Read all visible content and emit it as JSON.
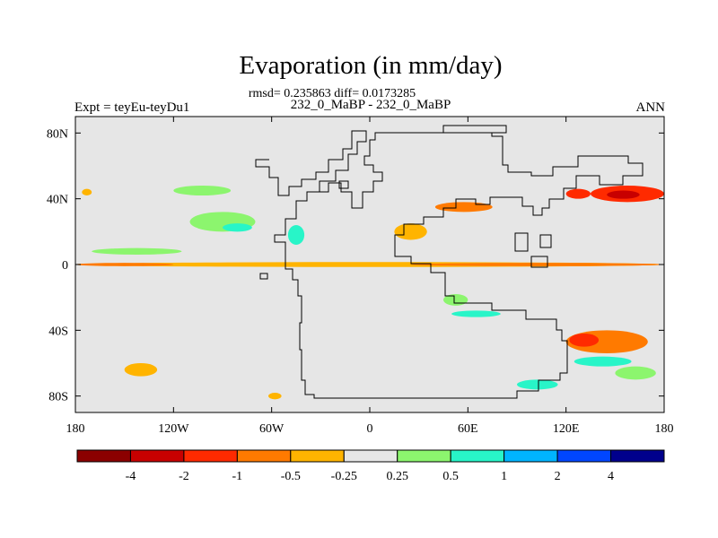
{
  "chart_data": {
    "type": "heatmap",
    "title": "Evaporation (in mm/day)",
    "stats": "rmsd= 0.235863 diff= 0.0173285",
    "subtitle": "232_0_MaBP - 232_0_MaBP",
    "left_label": "Expt = teyEu-teyDu1",
    "right_label": "ANN",
    "x_ticks": [
      {
        "value": -180,
        "label": "180"
      },
      {
        "value": -120,
        "label": "120W"
      },
      {
        "value": -60,
        "label": "60W"
      },
      {
        "value": 0,
        "label": "0"
      },
      {
        "value": 60,
        "label": "60E"
      },
      {
        "value": 120,
        "label": "120E"
      },
      {
        "value": 180,
        "label": "180"
      }
    ],
    "y_ticks": [
      {
        "value": 80,
        "label": "80N"
      },
      {
        "value": 40,
        "label": "40N"
      },
      {
        "value": 0,
        "label": "0"
      },
      {
        "value": -40,
        "label": "40S"
      },
      {
        "value": -80,
        "label": "80S"
      }
    ],
    "xlim": [
      -180,
      180
    ],
    "ylim": [
      -90,
      90
    ],
    "colorbar": {
      "colors": [
        "#8b0000",
        "#c80000",
        "#ff2a00",
        "#ff7a00",
        "#ffb400",
        "#e6e6e6",
        "#8cf56e",
        "#28f5c8",
        "#00b4ff",
        "#0046ff",
        "#00008c"
      ],
      "levels": [
        -4,
        -2,
        -1,
        -0.5,
        -0.25,
        0.25,
        0.5,
        1,
        2,
        4
      ],
      "level_labels": [
        "-4",
        "-2",
        "-1",
        "-0.5",
        "-0.25",
        "0.25",
        "0.5",
        "1",
        "2",
        "4"
      ]
    },
    "background_color": "#e6e6e6",
    "anomaly_regions": [
      {
        "lon": [
          -180,
          180
        ],
        "lat": [
          -1.5,
          1.5
        ],
        "value": -0.35
      },
      {
        "lon": [
          -180,
          -120
        ],
        "lat": [
          -1,
          1
        ],
        "value": -0.7
      },
      {
        "lon": [
          25,
          180
        ],
        "lat": [
          -1,
          1
        ],
        "value": -0.7
      },
      {
        "lon": [
          -170,
          -115
        ],
        "lat": [
          6,
          10
        ],
        "value": 0.4
      },
      {
        "lon": [
          -110,
          -70
        ],
        "lat": [
          20,
          32
        ],
        "value": 0.4
      },
      {
        "lon": [
          -120,
          -85
        ],
        "lat": [
          42,
          48
        ],
        "value": 0.4
      },
      {
        "lon": [
          -90,
          -72
        ],
        "lat": [
          20,
          25
        ],
        "value": 0.7
      },
      {
        "lon": [
          -150,
          -130
        ],
        "lat": [
          -68,
          -60
        ],
        "value": -0.35
      },
      {
        "lon": [
          -176,
          -170
        ],
        "lat": [
          42,
          46
        ],
        "value": -0.35
      },
      {
        "lon": [
          135,
          180
        ],
        "lat": [
          38,
          48
        ],
        "value": -1.5
      },
      {
        "lon": [
          145,
          165
        ],
        "lat": [
          40,
          45
        ],
        "value": -2.5
      },
      {
        "lon": [
          120,
          135
        ],
        "lat": [
          40,
          46
        ],
        "value": -1.2
      },
      {
        "lon": [
          120,
          170
        ],
        "lat": [
          -54,
          -40
        ],
        "value": -0.7
      },
      {
        "lon": [
          122,
          140
        ],
        "lat": [
          -50,
          -42
        ],
        "value": -1.5
      },
      {
        "lon": [
          125,
          160
        ],
        "lat": [
          -62,
          -56
        ],
        "value": 0.8
      },
      {
        "lon": [
          150,
          175
        ],
        "lat": [
          -70,
          -62
        ],
        "value": 0.4
      },
      {
        "lon": [
          90,
          115
        ],
        "lat": [
          -76,
          -70
        ],
        "value": 0.8
      },
      {
        "lon": [
          40,
          75
        ],
        "lat": [
          32,
          38
        ],
        "value": -0.7
      },
      {
        "lon": [
          15,
          35
        ],
        "lat": [
          15,
          25
        ],
        "value": -0.35
      },
      {
        "lon": [
          45,
          60
        ],
        "lat": [
          -25,
          -18
        ],
        "value": 0.4
      },
      {
        "lon": [
          50,
          80
        ],
        "lat": [
          -32,
          -28
        ],
        "value": 0.8
      },
      {
        "lon": [
          -62,
          -54
        ],
        "lat": [
          -82,
          -78
        ],
        "value": -0.35
      },
      {
        "lon": [
          -50,
          -40
        ],
        "lat": [
          12,
          24
        ],
        "value": 0.8
      }
    ]
  }
}
